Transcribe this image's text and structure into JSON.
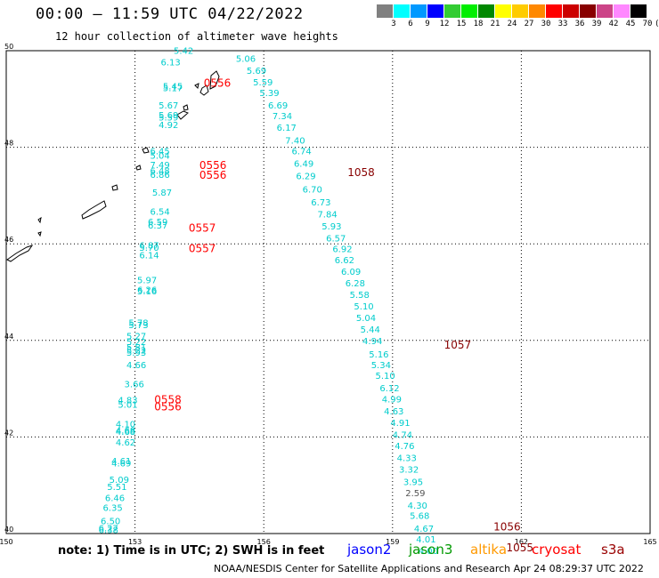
{
  "title": "00:00 – 11:59 UTC 04/22/2022",
  "subtitle": "12 hour collection of altimeter wave heights",
  "legend": {
    "colors": [
      "#808080",
      "#00ffff",
      "#0099ff",
      "#0000ff",
      "#33cc33",
      "#00ee00",
      "#008800",
      "#ffff00",
      "#ffcc00",
      "#ff8800",
      "#ff0000",
      "#cc0000",
      "#880000",
      "#cc4488",
      "#ff88ff",
      "#000000"
    ],
    "labels": [
      "3",
      "6",
      "9",
      "12",
      "15",
      "18",
      "21",
      "24",
      "27",
      "30",
      "33",
      "36",
      "39",
      "42",
      "45",
      "70"
    ],
    "unit": "(ft)"
  },
  "axes": {
    "x_ticks": [
      "150",
      "153",
      "156",
      "159",
      "162",
      "165"
    ],
    "y_ticks": [
      "40",
      "42",
      "44",
      "46",
      "48",
      "50"
    ]
  },
  "track_west": [
    {
      "lat": 49.94,
      "lon": 153.9,
      "v": "5.42"
    },
    {
      "lat": 49.7,
      "lon": 153.6,
      "v": "6.13"
    },
    {
      "lat": 49.2,
      "lon": 153.65,
      "v": "5.45"
    },
    {
      "lat": 49.16,
      "lon": 153.65,
      "v": "5.17"
    },
    {
      "lat": 48.8,
      "lon": 153.55,
      "v": "5.67"
    },
    {
      "lat": 48.6,
      "lon": 153.55,
      "v": "5.69"
    },
    {
      "lat": 48.55,
      "lon": 153.55,
      "v": "5.59"
    },
    {
      "lat": 48.4,
      "lon": 153.55,
      "v": "4.92"
    },
    {
      "lat": 47.85,
      "lon": 153.35,
      "v": "6.45"
    },
    {
      "lat": 47.76,
      "lon": 153.35,
      "v": "5.04"
    },
    {
      "lat": 47.57,
      "lon": 153.35,
      "v": "7.49"
    },
    {
      "lat": 47.45,
      "lon": 153.35,
      "v": "6.48"
    },
    {
      "lat": 47.37,
      "lon": 153.35,
      "v": "6.86"
    },
    {
      "lat": 47.0,
      "lon": 153.4,
      "v": "5.87"
    },
    {
      "lat": 46.6,
      "lon": 153.35,
      "v": "6.54"
    },
    {
      "lat": 46.39,
      "lon": 153.3,
      "v": "6.59"
    },
    {
      "lat": 46.32,
      "lon": 153.3,
      "v": "6.37"
    },
    {
      "lat": 45.9,
      "lon": 153.1,
      "v": "6.87"
    },
    {
      "lat": 45.86,
      "lon": 153.1,
      "v": "5.70"
    },
    {
      "lat": 45.7,
      "lon": 153.1,
      "v": "6.14"
    },
    {
      "lat": 45.18,
      "lon": 153.05,
      "v": "5.97"
    },
    {
      "lat": 44.98,
      "lon": 153.05,
      "v": "6.26"
    },
    {
      "lat": 44.95,
      "lon": 153.05,
      "v": "5.16"
    },
    {
      "lat": 44.3,
      "lon": 152.85,
      "v": "5.78"
    },
    {
      "lat": 44.25,
      "lon": 152.85,
      "v": "5.73"
    },
    {
      "lat": 44.02,
      "lon": 152.8,
      "v": "5.27"
    },
    {
      "lat": 43.9,
      "lon": 152.8,
      "v": "5.22"
    },
    {
      "lat": 43.79,
      "lon": 152.8,
      "v": "5.81"
    },
    {
      "lat": 43.73,
      "lon": 152.8,
      "v": "5.22"
    },
    {
      "lat": 43.68,
      "lon": 152.8,
      "v": "5.93"
    },
    {
      "lat": 43.43,
      "lon": 152.8,
      "v": "4.66"
    },
    {
      "lat": 43.03,
      "lon": 152.75,
      "v": "3.66"
    },
    {
      "lat": 42.7,
      "lon": 152.6,
      "v": "4.83"
    },
    {
      "lat": 42.61,
      "lon": 152.6,
      "v": "5.01"
    },
    {
      "lat": 42.2,
      "lon": 152.55,
      "v": "4.10"
    },
    {
      "lat": 42.07,
      "lon": 152.55,
      "v": "4.68"
    },
    {
      "lat": 42.04,
      "lon": 152.55,
      "v": "4.68"
    },
    {
      "lat": 41.82,
      "lon": 152.55,
      "v": "4.62"
    },
    {
      "lat": 41.44,
      "lon": 152.45,
      "v": "4.61"
    },
    {
      "lat": 41.39,
      "lon": 152.45,
      "v": "4.69"
    },
    {
      "lat": 41.05,
      "lon": 152.4,
      "v": "5.09"
    },
    {
      "lat": 40.9,
      "lon": 152.35,
      "v": "5.51"
    },
    {
      "lat": 40.67,
      "lon": 152.3,
      "v": "6.46"
    },
    {
      "lat": 40.47,
      "lon": 152.25,
      "v": "6.35"
    },
    {
      "lat": 40.19,
      "lon": 152.2,
      "v": "6.50"
    },
    {
      "lat": 40.05,
      "lon": 152.15,
      "v": "6.27"
    },
    {
      "lat": 40.01,
      "lon": 152.15,
      "v": "6.38"
    }
  ],
  "track_east": [
    {
      "lat": 49.77,
      "lon": 155.35,
      "v": "5.06"
    },
    {
      "lat": 49.52,
      "lon": 155.6,
      "v": "5.69"
    },
    {
      "lat": 49.28,
      "lon": 155.75,
      "v": "5.59"
    },
    {
      "lat": 49.06,
      "lon": 155.9,
      "v": "5.39"
    },
    {
      "lat": 48.8,
      "lon": 156.1,
      "v": "6.69"
    },
    {
      "lat": 48.58,
      "lon": 156.2,
      "v": "7.34"
    },
    {
      "lat": 48.34,
      "lon": 156.3,
      "v": "6.17"
    },
    {
      "lat": 48.08,
      "lon": 156.5,
      "v": "7.40"
    },
    {
      "lat": 47.85,
      "lon": 156.65,
      "v": "6.74"
    },
    {
      "lat": 47.6,
      "lon": 156.7,
      "v": "6.49"
    },
    {
      "lat": 47.34,
      "lon": 156.75,
      "v": "6.29"
    },
    {
      "lat": 47.06,
      "lon": 156.9,
      "v": "6.70"
    },
    {
      "lat": 46.8,
      "lon": 157.1,
      "v": "6.73"
    },
    {
      "lat": 46.55,
      "lon": 157.25,
      "v": "7.84"
    },
    {
      "lat": 46.3,
      "lon": 157.35,
      "v": "5.93"
    },
    {
      "lat": 46.05,
      "lon": 157.45,
      "v": "6.57"
    },
    {
      "lat": 45.83,
      "lon": 157.6,
      "v": "6.92"
    },
    {
      "lat": 45.6,
      "lon": 157.65,
      "v": "6.62"
    },
    {
      "lat": 45.36,
      "lon": 157.8,
      "v": "6.09"
    },
    {
      "lat": 45.12,
      "lon": 157.9,
      "v": "6.28"
    },
    {
      "lat": 44.88,
      "lon": 158.0,
      "v": "5.58"
    },
    {
      "lat": 44.64,
      "lon": 158.1,
      "v": "5.10"
    },
    {
      "lat": 44.4,
      "lon": 158.15,
      "v": "5.04"
    },
    {
      "lat": 44.16,
      "lon": 158.25,
      "v": "5.44"
    },
    {
      "lat": 43.92,
      "lon": 158.3,
      "v": "4.94"
    },
    {
      "lat": 43.65,
      "lon": 158.45,
      "v": "5.16"
    },
    {
      "lat": 43.43,
      "lon": 158.5,
      "v": "5.34"
    },
    {
      "lat": 43.2,
      "lon": 158.6,
      "v": "5.10"
    },
    {
      "lat": 42.95,
      "lon": 158.7,
      "v": "6.12"
    },
    {
      "lat": 42.72,
      "lon": 158.75,
      "v": "4.99"
    },
    {
      "lat": 42.47,
      "lon": 158.8,
      "v": "4.63"
    },
    {
      "lat": 42.23,
      "lon": 158.95,
      "v": "4.91"
    },
    {
      "lat": 41.98,
      "lon": 159.0,
      "v": "4.74"
    },
    {
      "lat": 41.75,
      "lon": 159.05,
      "v": "4.76"
    },
    {
      "lat": 41.5,
      "lon": 159.1,
      "v": "4.33"
    },
    {
      "lat": 41.26,
      "lon": 159.15,
      "v": "3.32"
    },
    {
      "lat": 41.0,
      "lon": 159.25,
      "v": "3.95"
    },
    {
      "lat": 40.77,
      "lon": 159.3,
      "v": "2.59",
      "color": "#555555"
    },
    {
      "lat": 40.52,
      "lon": 159.35,
      "v": "4.30"
    },
    {
      "lat": 40.3,
      "lon": 159.4,
      "v": "5.68"
    },
    {
      "lat": 40.04,
      "lon": 159.5,
      "v": "4.67"
    },
    {
      "lat": 39.82,
      "lon": 159.55,
      "v": "4.01"
    },
    {
      "lat": 39.58,
      "lon": 159.6,
      "v": "4.00"
    }
  ],
  "time_labels": [
    {
      "lat": 49.25,
      "lon": 154.6,
      "v": "0556",
      "color": "#ff0000"
    },
    {
      "lat": 47.55,
      "lon": 154.5,
      "v": "0556",
      "color": "#ff0000"
    },
    {
      "lat": 47.35,
      "lon": 154.5,
      "v": "0556",
      "color": "#ff0000"
    },
    {
      "lat": 46.25,
      "lon": 154.25,
      "v": "0557",
      "color": "#ff0000"
    },
    {
      "lat": 45.83,
      "lon": 154.25,
      "v": "0557",
      "color": "#ff0000"
    },
    {
      "lat": 42.7,
      "lon": 153.45,
      "v": "0558",
      "color": "#ff0000"
    },
    {
      "lat": 42.55,
      "lon": 153.45,
      "v": "0556",
      "color": "#ff0000"
    },
    {
      "lat": 47.4,
      "lon": 157.95,
      "v": "1058",
      "color": "#880000"
    },
    {
      "lat": 43.83,
      "lon": 160.2,
      "v": "1057",
      "color": "#880000"
    },
    {
      "lat": 40.06,
      "lon": 161.35,
      "v": "1056",
      "color": "#880000"
    },
    {
      "lat": 39.63,
      "lon": 161.65,
      "v": "1055",
      "color": "#880000"
    }
  ],
  "note": "note: 1) Time is in UTC; 2) SWH is in feet",
  "satellites": [
    {
      "name": "jason2",
      "color": "#0000ff"
    },
    {
      "name": "jason3",
      "color": "#009900"
    },
    {
      "name": "altika",
      "color": "#ff9900"
    },
    {
      "name": "cryosat",
      "color": "#ff0000"
    },
    {
      "name": "s3a",
      "color": "#990000"
    }
  ],
  "footer": "NOAA/NESDIS Center for Satellite Applications and Research    Apr 24 08:29:37 UTC 2022"
}
